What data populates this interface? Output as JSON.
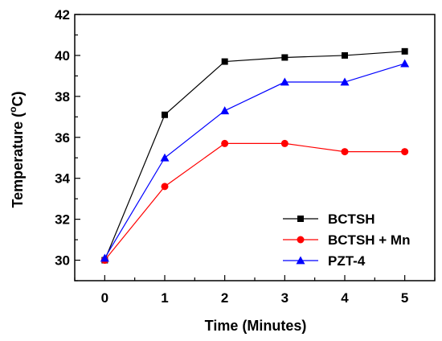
{
  "chart_data": {
    "type": "line",
    "xlabel": "Time (Minutes)",
    "ylabel": "Temperature (",
    "ylabel_sup": "o",
    "ylabel_suffix": "C)",
    "x": [
      0,
      1,
      2,
      3,
      4,
      5
    ],
    "xlim": [
      -0.5,
      5.5
    ],
    "ylim": [
      29,
      42
    ],
    "xticks": [
      "0",
      "1",
      "2",
      "3",
      "4",
      "5"
    ],
    "yticks": [
      "30",
      "32",
      "34",
      "36",
      "38",
      "40",
      "42"
    ],
    "grid": false,
    "legend_position": "bottom-right",
    "series": [
      {
        "name": "BCTSH",
        "color": "#000000",
        "marker": "square",
        "values": [
          30.0,
          37.1,
          39.7,
          39.9,
          40.0,
          40.2
        ]
      },
      {
        "name": "BCTSH + Mn",
        "color": "#ff0000",
        "marker": "circle",
        "values": [
          30.0,
          33.6,
          35.7,
          35.7,
          35.3,
          35.3
        ]
      },
      {
        "name": "PZT-4",
        "color": "#0000ff",
        "marker": "triangle",
        "values": [
          30.1,
          35.0,
          37.3,
          38.7,
          38.7,
          39.6
        ]
      }
    ]
  }
}
